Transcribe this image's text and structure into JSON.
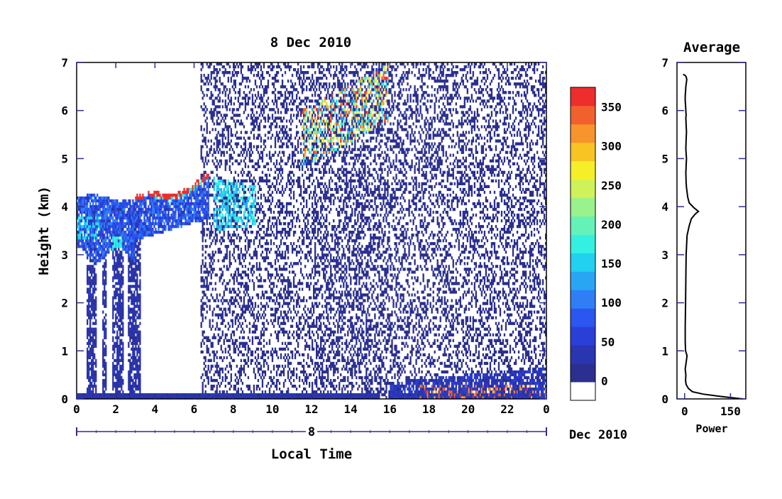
{
  "chart_data": [
    {
      "type": "heatmap",
      "title": "8 Dec 2010",
      "xlabel": "Local Time",
      "ylabel": "Height (km)",
      "xlim": [
        0,
        24
      ],
      "ylim": [
        0,
        7
      ],
      "x_ticks": [
        "0",
        "2",
        "4",
        "6",
        "8",
        "10",
        "12",
        "14",
        "16",
        "18",
        "20",
        "22",
        "0"
      ],
      "y_ticks": [
        "0",
        "1",
        "2",
        "3",
        "4",
        "5",
        "6",
        "7"
      ],
      "date_axis": {
        "day_label": "8",
        "month_label": "Dec 2010"
      },
      "colorbar": {
        "ticks": [
          "0",
          "50",
          "100",
          "150",
          "200",
          "250",
          "300",
          "350"
        ],
        "range": [
          -25,
          375
        ],
        "colors": [
          "#ffffff",
          "#2b2f8f",
          "#2a35b0",
          "#2a3fd8",
          "#2b56f0",
          "#2f7ef5",
          "#28a6f3",
          "#22d0f0",
          "#34f0e0",
          "#64f2b8",
          "#9af28c",
          "#cff25a",
          "#f7ee2a",
          "#f7c424",
          "#f7942b",
          "#f2602e",
          "#ee2d2d"
        ]
      },
      "layers": [
        {
          "name": "cloud-early",
          "x_range": [
            0,
            6.8
          ],
          "y_range": [
            3.0,
            4.6
          ],
          "value": 140
        },
        {
          "name": "cloud-mid",
          "x_range": [
            6.8,
            9.2
          ],
          "y_range": [
            3.5,
            4.6
          ],
          "value": 150
        },
        {
          "name": "upper-cirrus",
          "x_range": [
            11.5,
            15.9
          ],
          "y_range": [
            4.9,
            6.7
          ],
          "value": 320
        },
        {
          "name": "boundary-layer-evening",
          "x_range": [
            16,
            24
          ],
          "y_range": [
            0,
            0.9
          ],
          "value": 60
        },
        {
          "name": "noise-background",
          "x_range": [
            6.3,
            24
          ],
          "y_range": [
            0,
            7
          ],
          "value": 10
        }
      ]
    },
    {
      "type": "line",
      "title": "Average",
      "xlabel": "Power",
      "x_ticks": [
        "0",
        "150"
      ],
      "y_ticks": [
        "0",
        "1",
        "2",
        "3",
        "4",
        "5",
        "6",
        "7"
      ],
      "xlim": [
        -25,
        200
      ],
      "ylim": [
        0,
        7
      ],
      "series": [
        {
          "x": [
            190,
            120,
            60,
            25,
            12,
            5,
            3,
            4,
            2,
            8,
            3,
            2,
            2,
            3,
            4,
            5,
            8,
            15,
            22,
            35,
            45,
            30,
            15,
            10,
            6,
            5,
            4,
            5,
            6,
            5,
            4,
            5,
            6,
            5,
            4,
            5,
            4,
            3,
            2,
            2,
            3,
            4,
            6,
            7,
            5,
            3,
            0,
            -5
          ],
          "y": [
            0.0,
            0.05,
            0.1,
            0.15,
            0.22,
            0.3,
            0.38,
            0.5,
            0.62,
            0.9,
            1.0,
            1.2,
            1.5,
            2.0,
            2.5,
            3.0,
            3.4,
            3.6,
            3.75,
            3.85,
            3.9,
            3.98,
            4.08,
            4.2,
            4.4,
            4.5,
            4.7,
            4.85,
            5.0,
            5.1,
            5.2,
            5.4,
            5.55,
            5.7,
            5.85,
            5.9,
            6.0,
            6.1,
            6.2,
            6.3,
            6.4,
            6.5,
            6.6,
            6.65,
            6.7,
            6.72,
            6.74,
            6.75
          ]
        }
      ]
    }
  ]
}
